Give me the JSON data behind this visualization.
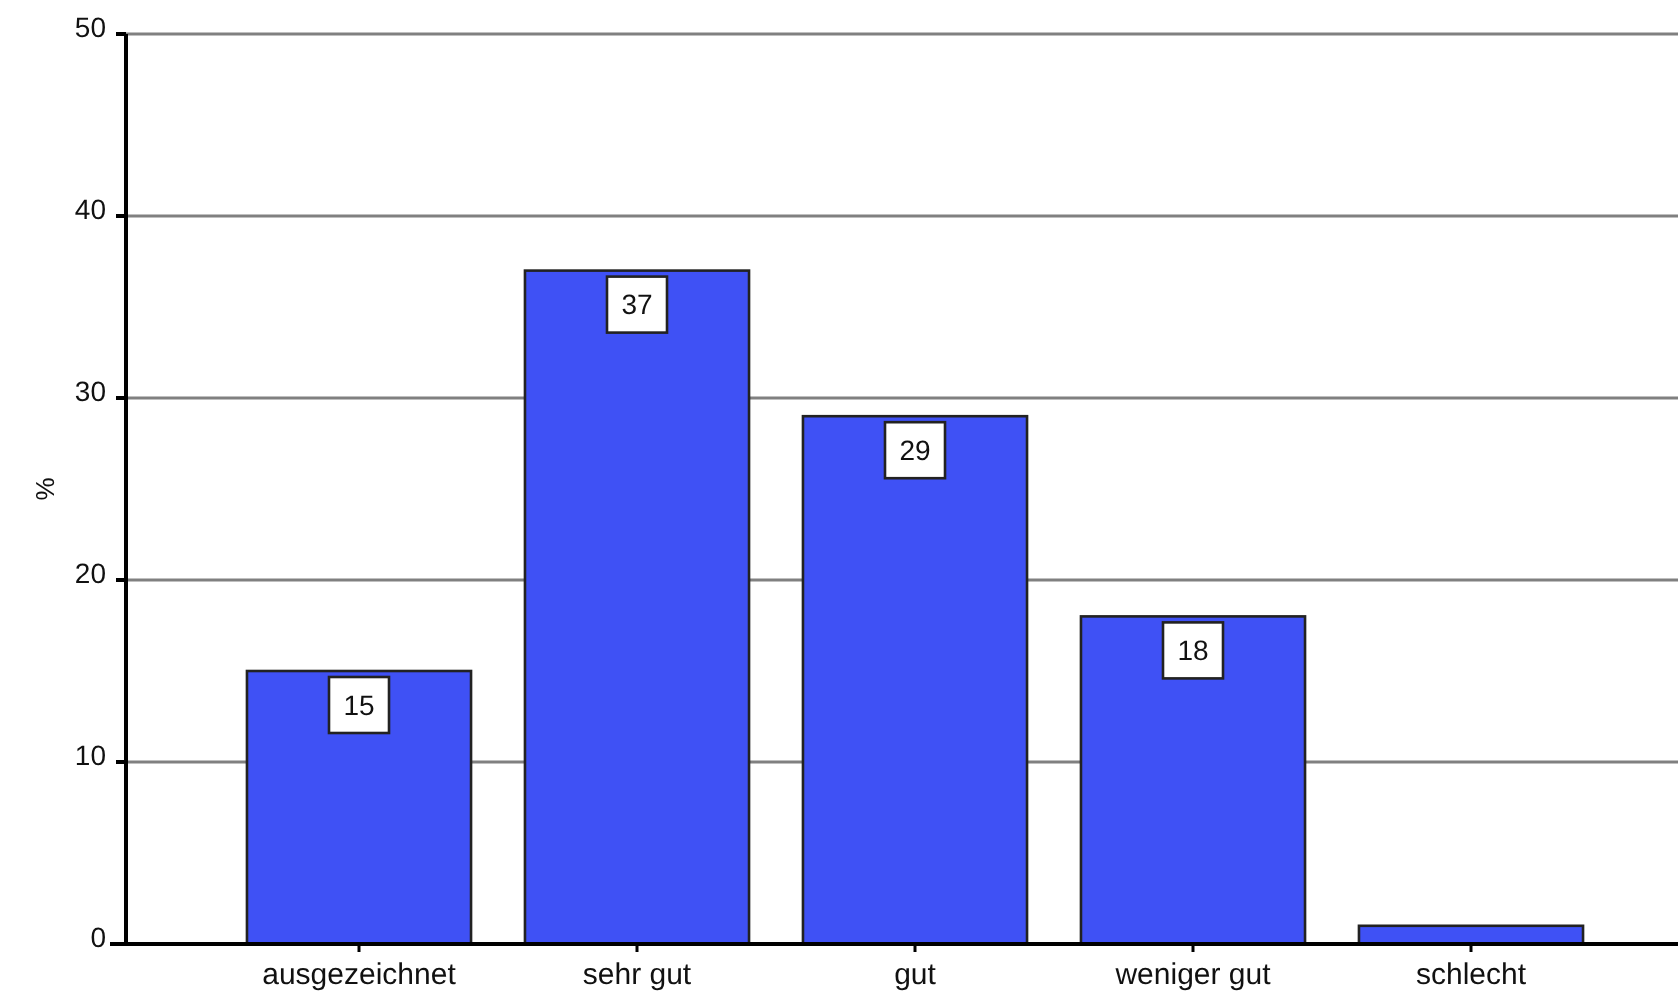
{
  "chart_data": {
    "type": "bar",
    "ylabel": "%",
    "categories": [
      "ausgezeichnet",
      "sehr gut",
      "gut",
      "weniger gut",
      "schlecht"
    ],
    "values": [
      15,
      37,
      29,
      18,
      1
    ],
    "value_labels": [
      "15",
      "37",
      "29",
      "18",
      null
    ],
    "color": "#3f51f5",
    "ylim": [
      0,
      50
    ],
    "yticks": [
      0,
      10,
      20,
      30,
      40,
      50
    ],
    "grid": "y"
  }
}
